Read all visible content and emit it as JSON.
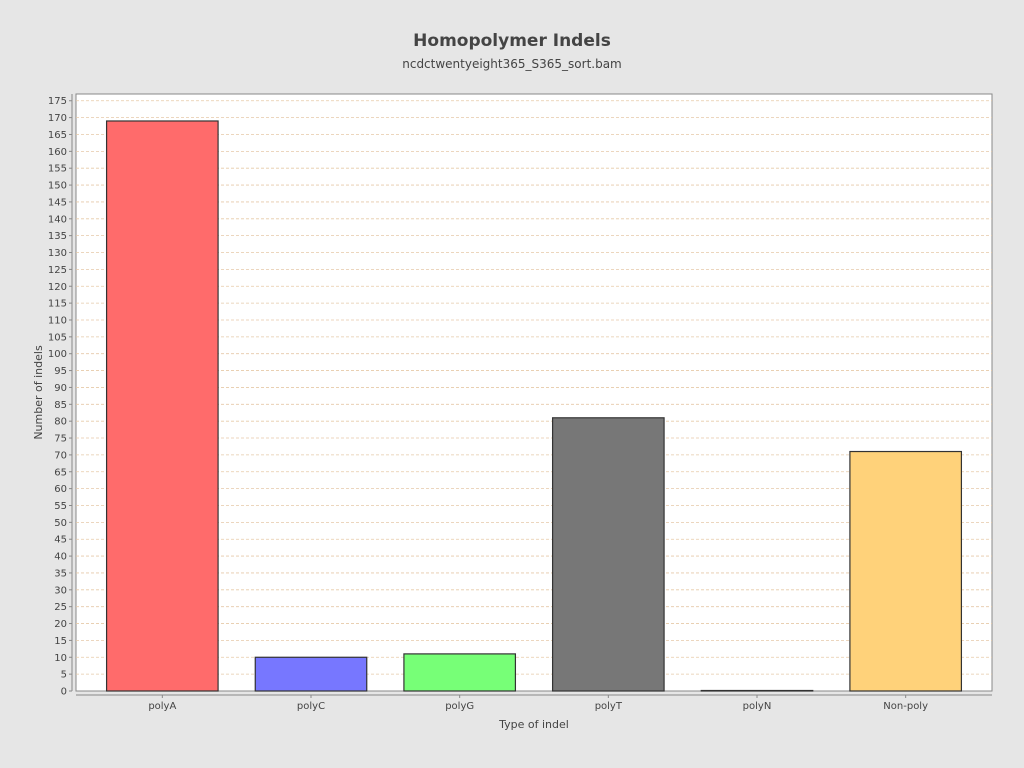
{
  "chart_data": {
    "type": "bar",
    "title": "Homopolymer Indels",
    "subtitle": "ncdctwentyeight365_S365_sort.bam",
    "xlabel": "Type of indel",
    "ylabel": "Number of indels",
    "categories": [
      "polyA",
      "polyC",
      "polyG",
      "polyT",
      "polyN",
      "Non-poly"
    ],
    "values": [
      169,
      10,
      11,
      81,
      0,
      71
    ],
    "colors": [
      "#ff6b6b",
      "#7777ff",
      "#77ff77",
      "#777777",
      "#777777",
      "#ffd27a"
    ],
    "ylim": [
      0,
      177
    ],
    "ytick_step": 5,
    "grid": true,
    "legend": "none"
  }
}
